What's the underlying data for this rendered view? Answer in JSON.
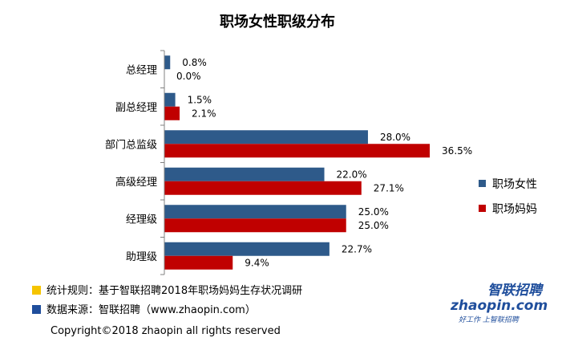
{
  "chart_data": {
    "type": "bar",
    "orientation": "horizontal",
    "title": "职场女性职级分布",
    "categories": [
      "总经理",
      "副总经理",
      "部门总监级",
      "高级经理",
      "经理级",
      "助理级"
    ],
    "series": [
      {
        "name": "职场女性",
        "color": "#2e5a8a",
        "values": [
          0.8,
          1.5,
          28.0,
          22.0,
          25.0,
          22.7
        ],
        "labels": [
          "0.8%",
          "1.5%",
          "28.0%",
          "22.0%",
          "25.0%",
          "22.7%"
        ]
      },
      {
        "name": "职场妈妈",
        "color": "#c00000",
        "values": [
          0.0,
          2.1,
          36.5,
          27.1,
          25.0,
          9.4
        ],
        "labels": [
          "0.0%",
          "2.1%",
          "36.5%",
          "27.1%",
          "25.0%",
          "9.4%"
        ]
      }
    ],
    "xlim": [
      0,
      40
    ],
    "legend": "right",
    "grid": false
  },
  "footer": {
    "method_label": "统计规则：基于智联招聘2018年职场妈妈生存状况调研",
    "source_label": "数据来源：智联招聘（www.zhaopin.com）",
    "method_marker_color": "#f5c400",
    "source_marker_color": "#1f4e9c",
    "copyright": "Copyright©2018 zhaopin all rights reserved"
  },
  "logo": {
    "brand_cn": "智联招聘",
    "brand_en": "zhaopin.com",
    "slogan": "好工作 上智联招聘"
  }
}
